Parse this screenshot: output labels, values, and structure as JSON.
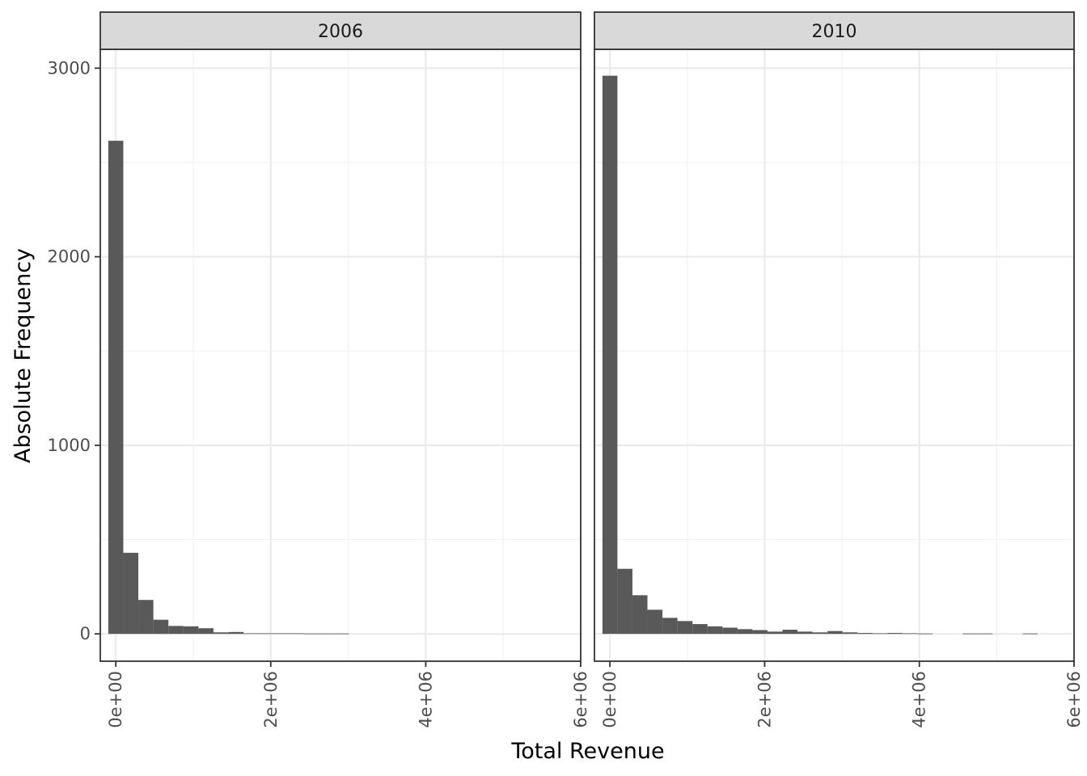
{
  "chart_data": {
    "type": "bar",
    "subtype": "histogram-faceted",
    "xlabel": "Total Revenue",
    "ylabel": "Absolute Frequency",
    "xlim": [
      -200000,
      6000000
    ],
    "ylim": [
      -145,
      3100
    ],
    "x_ticks": [
      0,
      2000000,
      4000000,
      6000000
    ],
    "x_tick_labels": [
      "0e+00",
      "2e+06",
      "4e+06",
      "6e+06"
    ],
    "y_ticks": [
      0,
      1000,
      2000,
      3000
    ],
    "y_tick_labels": [
      "0",
      "1000",
      "2000",
      "3000"
    ],
    "grid": true,
    "bar_color": "#595959",
    "bin_width": 194000,
    "first_bin_start": -97000,
    "panels": [
      {
        "label": "2006",
        "counts": [
          2615,
          430,
          180,
          75,
          42,
          40,
          30,
          8,
          10,
          3,
          3,
          3,
          3,
          2,
          2,
          2
        ]
      },
      {
        "label": "2010",
        "counts": [
          2960,
          345,
          205,
          128,
          85,
          68,
          52,
          40,
          33,
          25,
          20,
          12,
          22,
          12,
          8,
          15,
          8,
          5,
          3,
          5,
          3,
          2,
          0,
          0,
          2,
          2,
          0,
          0,
          2
        ]
      }
    ]
  }
}
